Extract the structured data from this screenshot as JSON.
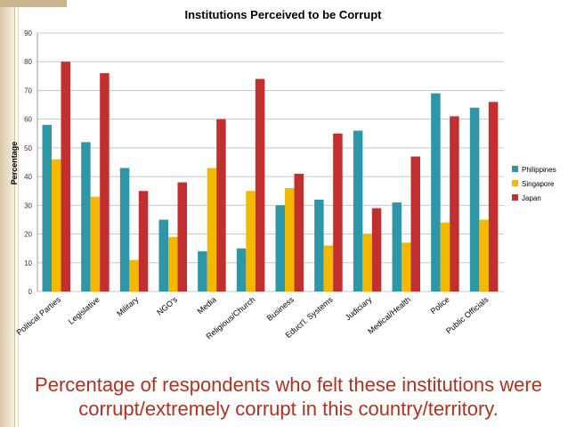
{
  "slide": {
    "caption_line1": "Percentage of respondents who felt these institutions were",
    "caption_line2": "corrupt/extremely corrupt in this country/territory."
  },
  "chart_data": {
    "type": "bar",
    "title": "Institutions Perceived to be Corrupt",
    "xlabel": "",
    "ylabel": "Percentage",
    "ylim": [
      0,
      90
    ],
    "yticks": [
      0,
      10,
      20,
      30,
      40,
      50,
      60,
      70,
      80,
      90
    ],
    "grid": true,
    "legend_position": "right",
    "categories": [
      "Political Parties",
      "Legislative",
      "Military",
      "NGO's",
      "Media",
      "Religious/Church",
      "Business",
      "Educt'l. Systems",
      "Judiciary",
      "Medical/Health",
      "Police",
      "Public Officials"
    ],
    "series": [
      {
        "name": "Philippines",
        "color": "#2e97a7",
        "values": [
          58,
          52,
          43,
          25,
          14,
          15,
          30,
          32,
          56,
          31,
          69,
          64
        ]
      },
      {
        "name": "Singapore",
        "color": "#f5b800",
        "values": [
          46,
          33,
          11,
          19,
          43,
          35,
          36,
          16,
          20,
          17,
          24,
          25
        ]
      },
      {
        "name": "Japan",
        "color": "#c32f2f",
        "values": [
          80,
          76,
          35,
          38,
          60,
          74,
          41,
          55,
          29,
          47,
          61,
          66
        ]
      }
    ]
  }
}
